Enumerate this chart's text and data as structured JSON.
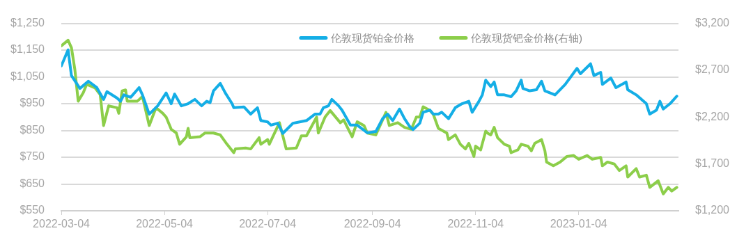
{
  "chart_data": {
    "type": "line",
    "legend": "top",
    "grid": "y",
    "xlim": [
      "2022-03-04",
      "2023-03-04"
    ],
    "xticks": [
      "2022-03-04",
      "2022-05-04",
      "2022-07-04",
      "2022-09-04",
      "2022-11-04",
      "2023-01-04"
    ],
    "ylim": [
      550,
      1250
    ],
    "yticks": [
      {
        "value": 550,
        "label": "$550"
      },
      {
        "value": 650,
        "label": "$650"
      },
      {
        "value": 750,
        "label": "$750"
      },
      {
        "value": 850,
        "label": "$850"
      },
      {
        "value": 950,
        "label": "$950"
      },
      {
        "value": 1050,
        "label": "$1,050"
      },
      {
        "value": 1150,
        "label": "$1,150"
      },
      {
        "value": 1250,
        "label": "$1,250"
      }
    ],
    "y2lim": [
      1200,
      3200
    ],
    "y2ticks": [
      {
        "value": 1200,
        "label": "$1,200"
      },
      {
        "value": 1700,
        "label": "$1,700"
      },
      {
        "value": 2200,
        "label": "$2,200"
      },
      {
        "value": 2700,
        "label": "$2,700"
      },
      {
        "value": 3200,
        "label": "$3,200"
      }
    ],
    "series": [
      {
        "name": "伦敦现货铂金价格",
        "color": "#14aee6",
        "x": [
          "2022-03-04",
          "2022-03-08",
          "2022-03-10",
          "2022-03-15",
          "2022-03-20",
          "2022-03-25",
          "2022-03-29",
          "2022-03-31",
          "2022-04-06",
          "2022-04-08",
          "2022-04-10",
          "2022-04-14",
          "2022-04-19",
          "2022-04-21",
          "2022-04-25",
          "2022-04-30",
          "2022-05-05",
          "2022-05-08",
          "2022-05-10",
          "2022-05-14",
          "2022-05-18",
          "2022-05-22",
          "2022-05-26",
          "2022-05-29",
          "2022-05-31",
          "2022-06-02",
          "2022-06-06",
          "2022-06-09",
          "2022-06-13",
          "2022-06-14",
          "2022-06-20",
          "2022-06-24",
          "2022-06-28",
          "2022-06-30",
          "2022-07-04",
          "2022-07-06",
          "2022-07-10",
          "2022-07-13",
          "2022-07-19",
          "2022-07-23",
          "2022-07-27",
          "2022-08-01",
          "2022-08-04",
          "2022-08-06",
          "2022-08-09",
          "2022-08-11",
          "2022-08-15",
          "2022-08-17",
          "2022-08-22",
          "2022-08-26",
          "2022-09-01",
          "2022-09-06",
          "2022-09-10",
          "2022-09-13",
          "2022-09-16",
          "2022-09-20",
          "2022-09-23",
          "2022-09-26",
          "2022-09-28",
          "2022-10-02",
          "2022-10-04",
          "2022-10-08",
          "2022-10-10",
          "2022-10-13",
          "2022-10-15",
          "2022-10-19",
          "2022-10-23",
          "2022-10-27",
          "2022-10-31",
          "2022-11-02",
          "2022-11-06",
          "2022-11-08",
          "2022-11-10",
          "2022-11-13",
          "2022-11-15",
          "2022-11-17",
          "2022-11-21",
          "2022-11-25",
          "2022-11-28",
          "2022-12-01",
          "2022-12-02",
          "2022-12-06",
          "2022-12-10",
          "2022-12-13",
          "2022-12-15",
          "2022-12-21",
          "2022-12-27",
          "2023-01-03",
          "2023-01-05",
          "2023-01-11",
          "2023-01-13",
          "2023-01-17",
          "2023-01-18",
          "2023-01-23",
          "2023-01-26",
          "2023-02-01",
          "2023-02-02",
          "2023-02-07",
          "2023-02-13",
          "2023-02-15",
          "2023-02-19",
          "2023-02-21",
          "2023-02-23",
          "2023-02-27",
          "2023-03-03"
        ],
        "values": [
          1091,
          1151,
          1055,
          1007,
          1034,
          1010,
          966,
          995,
          971,
          959,
          983,
          974,
          1010,
          983,
          911,
          942,
          990,
          950,
          986,
          942,
          950,
          966,
          942,
          959,
          954,
          998,
          1026,
          990,
          950,
          935,
          938,
          911,
          935,
          887,
          882,
          870,
          877,
          839,
          877,
          882,
          887,
          911,
          911,
          935,
          942,
          966,
          942,
          926,
          870,
          870,
          841,
          846,
          894,
          911,
          887,
          930,
          894,
          865,
          853,
          877,
          918,
          926,
          911,
          911,
          918,
          894,
          935,
          950,
          959,
          918,
          959,
          983,
          1038,
          1014,
          1031,
          983,
          983,
          976,
          998,
          1038,
          1007,
          998,
          1002,
          1034,
          998,
          983,
          1022,
          1082,
          1062,
          1099,
          1055,
          1067,
          1022,
          1046,
          1010,
          1031,
          1002,
          983,
          950,
          911,
          926,
          959,
          930,
          950,
          978
        ]
      },
      {
        "name": "伦敦现货钯金价格(右轴)",
        "color": "#8cce4a",
        "axis": "y2",
        "x": [
          "2022-03-04",
          "2022-03-08",
          "2022-03-10",
          "2022-03-12",
          "2022-03-14",
          "2022-03-17",
          "2022-03-19",
          "2022-03-24",
          "2022-03-27",
          "2022-03-29",
          "2022-04-01",
          "2022-04-06",
          "2022-04-07",
          "2022-04-09",
          "2022-04-11",
          "2022-04-12",
          "2022-04-18",
          "2022-04-21",
          "2022-04-25",
          "2022-04-29",
          "2022-05-03",
          "2022-05-05",
          "2022-05-08",
          "2022-05-11",
          "2022-05-13",
          "2022-05-17",
          "2022-05-18",
          "2022-05-19",
          "2022-05-25",
          "2022-05-28",
          "2022-06-02",
          "2022-06-06",
          "2022-06-10",
          "2022-06-14",
          "2022-06-15",
          "2022-06-21",
          "2022-06-24",
          "2022-06-29",
          "2022-06-30",
          "2022-07-04",
          "2022-07-05",
          "2022-07-11",
          "2022-07-15",
          "2022-07-21",
          "2022-07-24",
          "2022-07-27",
          "2022-08-02",
          "2022-08-03",
          "2022-08-07",
          "2022-08-10",
          "2022-08-16",
          "2022-08-18",
          "2022-08-23",
          "2022-08-26",
          "2022-08-30",
          "2022-09-01",
          "2022-09-06",
          "2022-09-12",
          "2022-09-14",
          "2022-09-19",
          "2022-09-23",
          "2022-09-27",
          "2022-09-30",
          "2022-10-02",
          "2022-10-04",
          "2022-10-08",
          "2022-10-10",
          "2022-10-13",
          "2022-10-18",
          "2022-10-19",
          "2022-10-23",
          "2022-10-26",
          "2022-10-29",
          "2022-10-31",
          "2022-11-03",
          "2022-11-04",
          "2022-11-07",
          "2022-11-10",
          "2022-11-11",
          "2022-11-13",
          "2022-11-15",
          "2022-11-17",
          "2022-11-21",
          "2022-11-24",
          "2022-11-25",
          "2022-11-29",
          "2022-12-01",
          "2022-12-05",
          "2022-12-07",
          "2022-12-09",
          "2022-12-13",
          "2022-12-15",
          "2022-12-16",
          "2022-12-20",
          "2022-12-24",
          "2022-12-28",
          "2023-01-01",
          "2023-01-04",
          "2023-01-09",
          "2023-01-12",
          "2023-01-17",
          "2023-01-18",
          "2023-01-21",
          "2023-01-25",
          "2023-01-28",
          "2023-02-01",
          "2023-02-02",
          "2023-02-07",
          "2023-02-09",
          "2023-02-13",
          "2023-02-15",
          "2023-02-20",
          "2023-02-23",
          "2023-02-26",
          "2023-02-28",
          "2023-03-03"
        ],
        "values": [
          2960,
          3020,
          2940,
          2710,
          2370,
          2460,
          2550,
          2510,
          2440,
          2110,
          2320,
          2300,
          2240,
          2480,
          2490,
          2370,
          2370,
          2420,
          2110,
          2300,
          2240,
          2200,
          2070,
          2030,
          1910,
          1990,
          2080,
          1980,
          1990,
          2030,
          2030,
          2010,
          1910,
          1820,
          1860,
          1870,
          1860,
          1980,
          1910,
          1960,
          1910,
          2140,
          1860,
          1870,
          2000,
          2000,
          2200,
          2030,
          2200,
          2270,
          2140,
          2170,
          1990,
          2150,
          2110,
          2030,
          2010,
          2250,
          2110,
          2140,
          2090,
          2070,
          2200,
          2200,
          2310,
          2270,
          2230,
          2080,
          2030,
          1960,
          2010,
          1910,
          1860,
          1920,
          1780,
          1890,
          1850,
          2050,
          2030,
          2010,
          2090,
          1980,
          1910,
          1890,
          1820,
          1850,
          1910,
          1890,
          1840,
          1920,
          1960,
          1840,
          1720,
          1680,
          1720,
          1780,
          1790,
          1750,
          1790,
          1750,
          1770,
          1680,
          1720,
          1700,
          1630,
          1680,
          1560,
          1650,
          1560,
          1580,
          1450,
          1520,
          1380,
          1450,
          1410,
          1450
        ]
      }
    ]
  }
}
